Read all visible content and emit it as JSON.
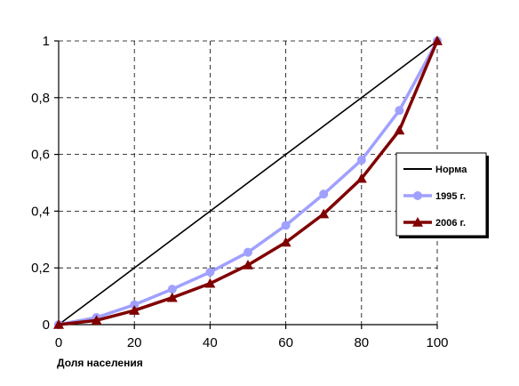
{
  "chart_data": {
    "type": "line",
    "title": "",
    "xlabel": "Доля населения",
    "ylabel": "",
    "xlim": [
      0,
      100
    ],
    "ylim": [
      0,
      1
    ],
    "xticks": [
      0,
      20,
      40,
      60,
      80,
      100
    ],
    "yticks": [
      0,
      0.2,
      0.4,
      0.6,
      0.8,
      1
    ],
    "xtick_labels": [
      "0",
      "20",
      "40",
      "60",
      "80",
      "100"
    ],
    "ytick_labels": [
      "0",
      "0,2",
      "0,4",
      "0,6",
      "0,8",
      "1"
    ],
    "grid": true,
    "legend": "right",
    "series": [
      {
        "name": "Норма",
        "color": "#000000",
        "marker": "none",
        "x": [
          0,
          100
        ],
        "y": [
          0,
          1
        ]
      },
      {
        "name": "1995 г.",
        "color": "#a0a0ff",
        "marker": "circle",
        "x": [
          0,
          10,
          20,
          30,
          40,
          50,
          60,
          70,
          80,
          90,
          100
        ],
        "y": [
          0,
          0.025,
          0.07,
          0.125,
          0.185,
          0.255,
          0.35,
          0.46,
          0.58,
          0.755,
          1
        ]
      },
      {
        "name": "2006 г.",
        "color": "#800000",
        "marker": "triangle",
        "x": [
          0,
          10,
          20,
          30,
          40,
          50,
          60,
          70,
          80,
          90,
          100
        ],
        "y": [
          0,
          0.015,
          0.05,
          0.095,
          0.145,
          0.21,
          0.29,
          0.39,
          0.515,
          0.685,
          1
        ]
      }
    ]
  }
}
